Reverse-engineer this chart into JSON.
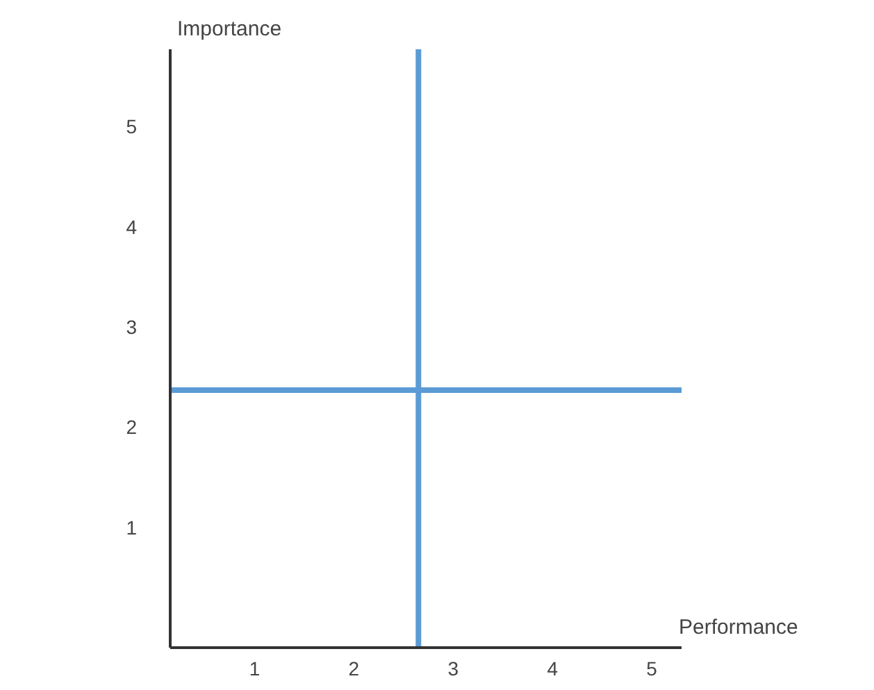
{
  "chart_data": {
    "type": "scatter",
    "xlabel": "Performance",
    "ylabel": "Importance",
    "xlim": [
      0.15,
      5.3
    ],
    "ylim": [
      -0.2,
      5.77
    ],
    "xticks": [
      1,
      2,
      3,
      4,
      5
    ],
    "yticks": [
      1,
      2,
      3,
      4,
      5
    ],
    "grid": false,
    "ref_lines": [
      {
        "axis": "x",
        "value": 2.65,
        "color": "#5b9bd5"
      },
      {
        "axis": "y",
        "value": 2.37,
        "color": "#5b9bd5"
      }
    ]
  }
}
